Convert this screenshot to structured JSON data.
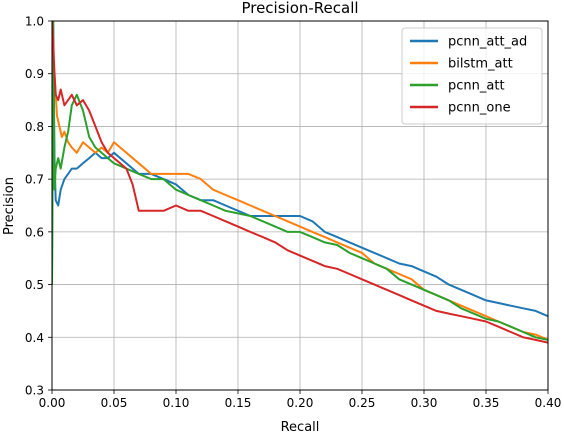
{
  "chart_data": {
    "type": "line",
    "title": "Precision-Recall",
    "xlabel": "Recall",
    "ylabel": "Precision",
    "xlim": [
      0.0,
      0.4
    ],
    "ylim": [
      0.3,
      1.0
    ],
    "xticks": [
      0.0,
      0.05,
      0.1,
      0.15,
      0.2,
      0.25,
      0.3,
      0.35,
      0.4
    ],
    "yticks": [
      0.3,
      0.4,
      0.5,
      0.6,
      0.7,
      0.8,
      0.9,
      1.0
    ],
    "xtick_labels": [
      "0.00",
      "0.05",
      "0.10",
      "0.15",
      "0.20",
      "0.25",
      "0.30",
      "0.35",
      "0.40"
    ],
    "ytick_labels": [
      "0.3",
      "0.4",
      "0.5",
      "0.6",
      "0.7",
      "0.8",
      "0.9",
      "1.0"
    ],
    "grid": true,
    "legend": "top-right",
    "series": [
      {
        "name": "pcnn_att_ad",
        "color": "#1f77b4",
        "x": [
          0.0,
          0.001,
          0.002,
          0.003,
          0.005,
          0.007,
          0.01,
          0.013,
          0.016,
          0.02,
          0.025,
          0.03,
          0.035,
          0.04,
          0.045,
          0.05,
          0.06,
          0.07,
          0.08,
          0.09,
          0.1,
          0.11,
          0.12,
          0.13,
          0.14,
          0.15,
          0.16,
          0.17,
          0.18,
          0.19,
          0.2,
          0.21,
          0.22,
          0.23,
          0.24,
          0.25,
          0.26,
          0.27,
          0.28,
          0.29,
          0.3,
          0.31,
          0.32,
          0.33,
          0.34,
          0.35,
          0.36,
          0.37,
          0.38,
          0.39,
          0.4
        ],
        "y": [
          0.5,
          1.0,
          0.74,
          0.66,
          0.65,
          0.68,
          0.7,
          0.71,
          0.72,
          0.72,
          0.73,
          0.74,
          0.75,
          0.74,
          0.74,
          0.75,
          0.73,
          0.71,
          0.71,
          0.7,
          0.69,
          0.67,
          0.66,
          0.66,
          0.65,
          0.64,
          0.63,
          0.63,
          0.63,
          0.63,
          0.63,
          0.62,
          0.6,
          0.59,
          0.58,
          0.57,
          0.56,
          0.55,
          0.54,
          0.535,
          0.525,
          0.515,
          0.5,
          0.49,
          0.48,
          0.47,
          0.465,
          0.46,
          0.455,
          0.45,
          0.44
        ]
      },
      {
        "name": "bilstm_att",
        "color": "#ff7f0e",
        "x": [
          0.0,
          0.001,
          0.002,
          0.004,
          0.006,
          0.008,
          0.01,
          0.013,
          0.016,
          0.02,
          0.025,
          0.03,
          0.035,
          0.04,
          0.045,
          0.05,
          0.06,
          0.07,
          0.08,
          0.09,
          0.1,
          0.11,
          0.12,
          0.13,
          0.14,
          0.15,
          0.16,
          0.17,
          0.18,
          0.19,
          0.2,
          0.21,
          0.22,
          0.23,
          0.24,
          0.25,
          0.26,
          0.27,
          0.28,
          0.29,
          0.3,
          0.31,
          0.32,
          0.33,
          0.34,
          0.35,
          0.36,
          0.37,
          0.38,
          0.39,
          0.4
        ],
        "y": [
          0.86,
          0.92,
          0.9,
          0.82,
          0.8,
          0.78,
          0.79,
          0.77,
          0.76,
          0.75,
          0.77,
          0.76,
          0.75,
          0.76,
          0.75,
          0.77,
          0.75,
          0.73,
          0.71,
          0.71,
          0.71,
          0.71,
          0.7,
          0.68,
          0.67,
          0.66,
          0.65,
          0.64,
          0.63,
          0.62,
          0.61,
          0.6,
          0.59,
          0.58,
          0.57,
          0.56,
          0.54,
          0.53,
          0.52,
          0.51,
          0.49,
          0.48,
          0.47,
          0.46,
          0.45,
          0.44,
          0.43,
          0.42,
          0.41,
          0.405,
          0.395
        ]
      },
      {
        "name": "pcnn_att",
        "color": "#2ca02c",
        "x": [
          0.0,
          0.001,
          0.002,
          0.003,
          0.005,
          0.007,
          0.01,
          0.013,
          0.016,
          0.02,
          0.025,
          0.03,
          0.035,
          0.04,
          0.045,
          0.05,
          0.06,
          0.07,
          0.08,
          0.09,
          0.1,
          0.11,
          0.12,
          0.13,
          0.14,
          0.15,
          0.16,
          0.17,
          0.18,
          0.19,
          0.2,
          0.21,
          0.22,
          0.23,
          0.24,
          0.25,
          0.26,
          0.27,
          0.28,
          0.29,
          0.3,
          0.31,
          0.32,
          0.33,
          0.34,
          0.35,
          0.36,
          0.37,
          0.38,
          0.39,
          0.4
        ],
        "y": [
          0.5,
          1.0,
          0.68,
          0.72,
          0.74,
          0.72,
          0.76,
          0.79,
          0.84,
          0.86,
          0.83,
          0.78,
          0.76,
          0.75,
          0.74,
          0.73,
          0.72,
          0.71,
          0.7,
          0.7,
          0.68,
          0.67,
          0.66,
          0.65,
          0.64,
          0.635,
          0.63,
          0.62,
          0.61,
          0.6,
          0.6,
          0.59,
          0.58,
          0.575,
          0.56,
          0.55,
          0.54,
          0.53,
          0.51,
          0.5,
          0.49,
          0.48,
          0.47,
          0.455,
          0.445,
          0.435,
          0.43,
          0.42,
          0.41,
          0.4,
          0.395
        ]
      },
      {
        "name": "pcnn_one",
        "color": "#d62728",
        "x": [
          0.0,
          0.001,
          0.002,
          0.003,
          0.005,
          0.007,
          0.01,
          0.013,
          0.016,
          0.02,
          0.025,
          0.03,
          0.035,
          0.04,
          0.045,
          0.05,
          0.055,
          0.06,
          0.065,
          0.07,
          0.08,
          0.09,
          0.1,
          0.11,
          0.12,
          0.13,
          0.14,
          0.15,
          0.16,
          0.17,
          0.18,
          0.19,
          0.2,
          0.21,
          0.22,
          0.23,
          0.24,
          0.25,
          0.26,
          0.27,
          0.28,
          0.29,
          0.3,
          0.31,
          0.32,
          0.33,
          0.34,
          0.35,
          0.36,
          0.37,
          0.38,
          0.39,
          0.4
        ],
        "y": [
          1.0,
          0.96,
          0.9,
          0.86,
          0.85,
          0.87,
          0.84,
          0.85,
          0.86,
          0.84,
          0.85,
          0.83,
          0.8,
          0.77,
          0.75,
          0.74,
          0.73,
          0.72,
          0.69,
          0.64,
          0.64,
          0.64,
          0.65,
          0.64,
          0.64,
          0.63,
          0.62,
          0.61,
          0.6,
          0.59,
          0.58,
          0.565,
          0.555,
          0.545,
          0.535,
          0.53,
          0.52,
          0.51,
          0.5,
          0.49,
          0.48,
          0.47,
          0.46,
          0.45,
          0.445,
          0.44,
          0.435,
          0.43,
          0.42,
          0.41,
          0.4,
          0.395,
          0.39
        ]
      }
    ]
  }
}
